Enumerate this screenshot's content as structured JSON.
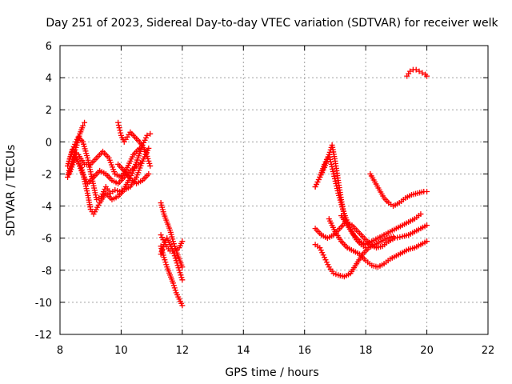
{
  "chart_data": {
    "type": "scatter",
    "title": "Day 251 of 2023, Sidereal Day-to-day VTEC variation (SDTVAR) for receiver welk",
    "xlabel": "GPS time / hours",
    "ylabel": "SDTVAR / TECUs",
    "xlim": [
      8,
      22
    ],
    "ylim": [
      -12,
      6
    ],
    "xticks": [
      8,
      10,
      12,
      14,
      16,
      18,
      20,
      22
    ],
    "yticks": [
      -12,
      -10,
      -8,
      -6,
      -4,
      -2,
      0,
      2,
      4,
      6
    ],
    "grid": true,
    "marker": "plus",
    "color": "#ff0000",
    "series": [
      {
        "x": [
          8.25,
          8.35,
          8.45,
          8.55,
          8.65,
          8.75,
          8.8
        ],
        "y": [
          -2.2,
          -1.5,
          -0.8,
          -0.2,
          0.5,
          1.0,
          1.2
        ]
      },
      {
        "x": [
          8.3,
          8.45,
          8.6,
          8.75,
          8.9,
          9.05,
          9.2,
          9.35,
          9.5,
          9.65,
          9.8,
          9.95,
          10.1,
          10.25,
          10.4,
          10.55,
          10.7,
          10.85,
          10.95
        ],
        "y": [
          -1.2,
          -0.3,
          0.3,
          0.0,
          -1.0,
          -2.3,
          -3.6,
          -3.4,
          -2.8,
          -3.2,
          -3.0,
          -3.1,
          -2.9,
          -2.4,
          -1.8,
          -1.0,
          -0.2,
          0.4,
          0.5
        ]
      },
      {
        "x": [
          8.3,
          8.5,
          8.7,
          8.9,
          9.0,
          9.1,
          9.3,
          9.5,
          9.7,
          9.9,
          10.1,
          10.3,
          10.5,
          10.7,
          10.9
        ],
        "y": [
          -2.0,
          -1.0,
          -1.6,
          -3.2,
          -4.2,
          -4.5,
          -3.8,
          -3.2,
          -3.6,
          -3.4,
          -3.0,
          -2.8,
          -2.2,
          -1.2,
          -0.4
        ]
      },
      {
        "x": [
          8.25,
          8.4,
          8.6,
          8.8,
          9.0,
          9.2,
          9.4,
          9.6,
          9.8,
          10.0,
          10.2,
          10.4,
          10.6
        ],
        "y": [
          -1.5,
          -0.5,
          -0.8,
          -1.4,
          -1.4,
          -1.0,
          -0.6,
          -1.0,
          -2.0,
          -2.2,
          -1.6,
          -0.8,
          -0.4
        ]
      },
      {
        "x": [
          8.3,
          8.5,
          8.7,
          8.9,
          9.1,
          9.3,
          9.5,
          9.7,
          9.9,
          10.1,
          10.3,
          10.5,
          10.7
        ],
        "y": [
          -1.8,
          -0.8,
          -1.8,
          -2.6,
          -2.2,
          -1.8,
          -2.0,
          -2.4,
          -2.6,
          -2.2,
          -1.8,
          -1.5,
          -1.2
        ]
      },
      {
        "x": [
          9.9,
          10.0,
          10.1,
          10.2,
          10.3,
          10.4,
          10.6,
          10.8,
          10.95
        ],
        "y": [
          1.2,
          0.4,
          0.0,
          0.3,
          0.6,
          0.4,
          0.0,
          -0.6,
          -1.5
        ]
      },
      {
        "x": [
          9.9,
          10.1,
          10.3,
          10.5,
          10.7,
          10.9
        ],
        "y": [
          -1.4,
          -1.8,
          -2.3,
          -2.6,
          -2.4,
          -2.0
        ]
      },
      {
        "x": [
          11.3,
          11.4,
          11.5,
          11.6,
          11.7,
          11.8,
          11.9,
          12.0
        ],
        "y": [
          -3.8,
          -4.5,
          -5.0,
          -5.5,
          -6.2,
          -6.8,
          -7.3,
          -7.8
        ]
      },
      {
        "x": [
          11.3,
          11.4,
          11.5,
          11.6,
          11.7,
          11.8,
          11.9,
          12.0
        ],
        "y": [
          -6.5,
          -7.2,
          -7.8,
          -8.3,
          -8.8,
          -9.4,
          -9.8,
          -10.2
        ]
      },
      {
        "x": [
          11.3,
          11.4,
          11.5,
          11.6,
          11.7,
          11.8,
          11.9,
          12.0
        ],
        "y": [
          -7.0,
          -6.4,
          -6.0,
          -6.4,
          -6.8,
          -7.4,
          -8.0,
          -8.6
        ]
      },
      {
        "x": [
          11.3,
          11.45,
          11.6,
          11.75,
          11.9,
          12.0
        ],
        "y": [
          -5.8,
          -6.4,
          -6.8,
          -6.8,
          -6.6,
          -6.2
        ]
      },
      {
        "x": [
          16.35,
          16.5,
          16.65,
          16.8,
          16.9,
          17.0,
          17.1,
          17.2,
          17.3,
          17.4
        ],
        "y": [
          -2.8,
          -2.2,
          -1.6,
          -0.8,
          -0.2,
          -1.2,
          -2.4,
          -3.6,
          -4.6,
          -5.2
        ]
      },
      {
        "x": [
          16.35,
          16.5,
          16.65,
          16.8,
          16.95,
          17.1,
          17.25,
          17.4,
          17.55,
          17.7,
          17.85,
          18.0
        ],
        "y": [
          -2.8,
          -2.2,
          -1.4,
          -0.8,
          -2.0,
          -3.2,
          -4.2,
          -5.0,
          -5.6,
          -6.1,
          -6.4,
          -6.6
        ]
      },
      {
        "x": [
          16.35,
          16.5,
          16.65,
          16.8,
          16.95,
          17.1,
          17.3,
          17.5,
          17.7,
          17.9,
          18.1,
          18.3,
          18.5,
          18.7,
          18.9
        ],
        "y": [
          -6.4,
          -6.6,
          -7.2,
          -7.8,
          -8.2,
          -8.3,
          -8.4,
          -8.2,
          -7.6,
          -7.0,
          -6.6,
          -6.4,
          -6.2,
          -6.0,
          -5.9
        ]
      },
      {
        "x": [
          16.35,
          16.55,
          16.75,
          16.95,
          17.15,
          17.35,
          17.55,
          17.75,
          17.95,
          18.15,
          18.35,
          18.55,
          18.75,
          18.95,
          19.2,
          19.4,
          19.6,
          19.8,
          20.0
        ],
        "y": [
          -5.4,
          -5.8,
          -6.0,
          -5.8,
          -5.4,
          -5.0,
          -5.2,
          -5.6,
          -6.0,
          -6.4,
          -6.6,
          -6.5,
          -6.2,
          -6.0,
          -5.9,
          -5.8,
          -5.6,
          -5.4,
          -5.2
        ]
      },
      {
        "x": [
          16.8,
          17.0,
          17.2,
          17.4,
          17.6,
          17.8,
          18.0,
          18.2,
          18.4,
          18.6,
          18.8,
          19.0,
          19.2,
          19.4,
          19.6,
          19.8,
          20.0
        ],
        "y": [
          -4.8,
          -5.6,
          -6.2,
          -6.6,
          -6.8,
          -7.0,
          -7.4,
          -7.7,
          -7.8,
          -7.6,
          -7.3,
          -7.1,
          -6.9,
          -6.7,
          -6.6,
          -6.4,
          -6.2
        ]
      },
      {
        "x": [
          17.2,
          17.4,
          17.6,
          17.8,
          18.0,
          18.2,
          18.4,
          18.6,
          18.8,
          19.0,
          19.2,
          19.4,
          19.6,
          19.8
        ],
        "y": [
          -4.6,
          -5.2,
          -5.8,
          -6.2,
          -6.4,
          -6.2,
          -6.0,
          -5.8,
          -5.6,
          -5.4,
          -5.2,
          -5.0,
          -4.8,
          -4.5
        ]
      },
      {
        "x": [
          18.15,
          18.3,
          18.45,
          18.6,
          18.75,
          18.9,
          19.1,
          19.3,
          19.5,
          19.7,
          19.9,
          20.0
        ],
        "y": [
          -2.0,
          -2.5,
          -3.0,
          -3.5,
          -3.8,
          -4.0,
          -3.8,
          -3.5,
          -3.3,
          -3.2,
          -3.1,
          -3.1
        ]
      },
      {
        "x": [
          19.35,
          19.45,
          19.55,
          19.65,
          19.75,
          19.85,
          19.95,
          20.0
        ],
        "y": [
          4.1,
          4.4,
          4.5,
          4.5,
          4.4,
          4.3,
          4.2,
          4.1
        ]
      }
    ]
  }
}
